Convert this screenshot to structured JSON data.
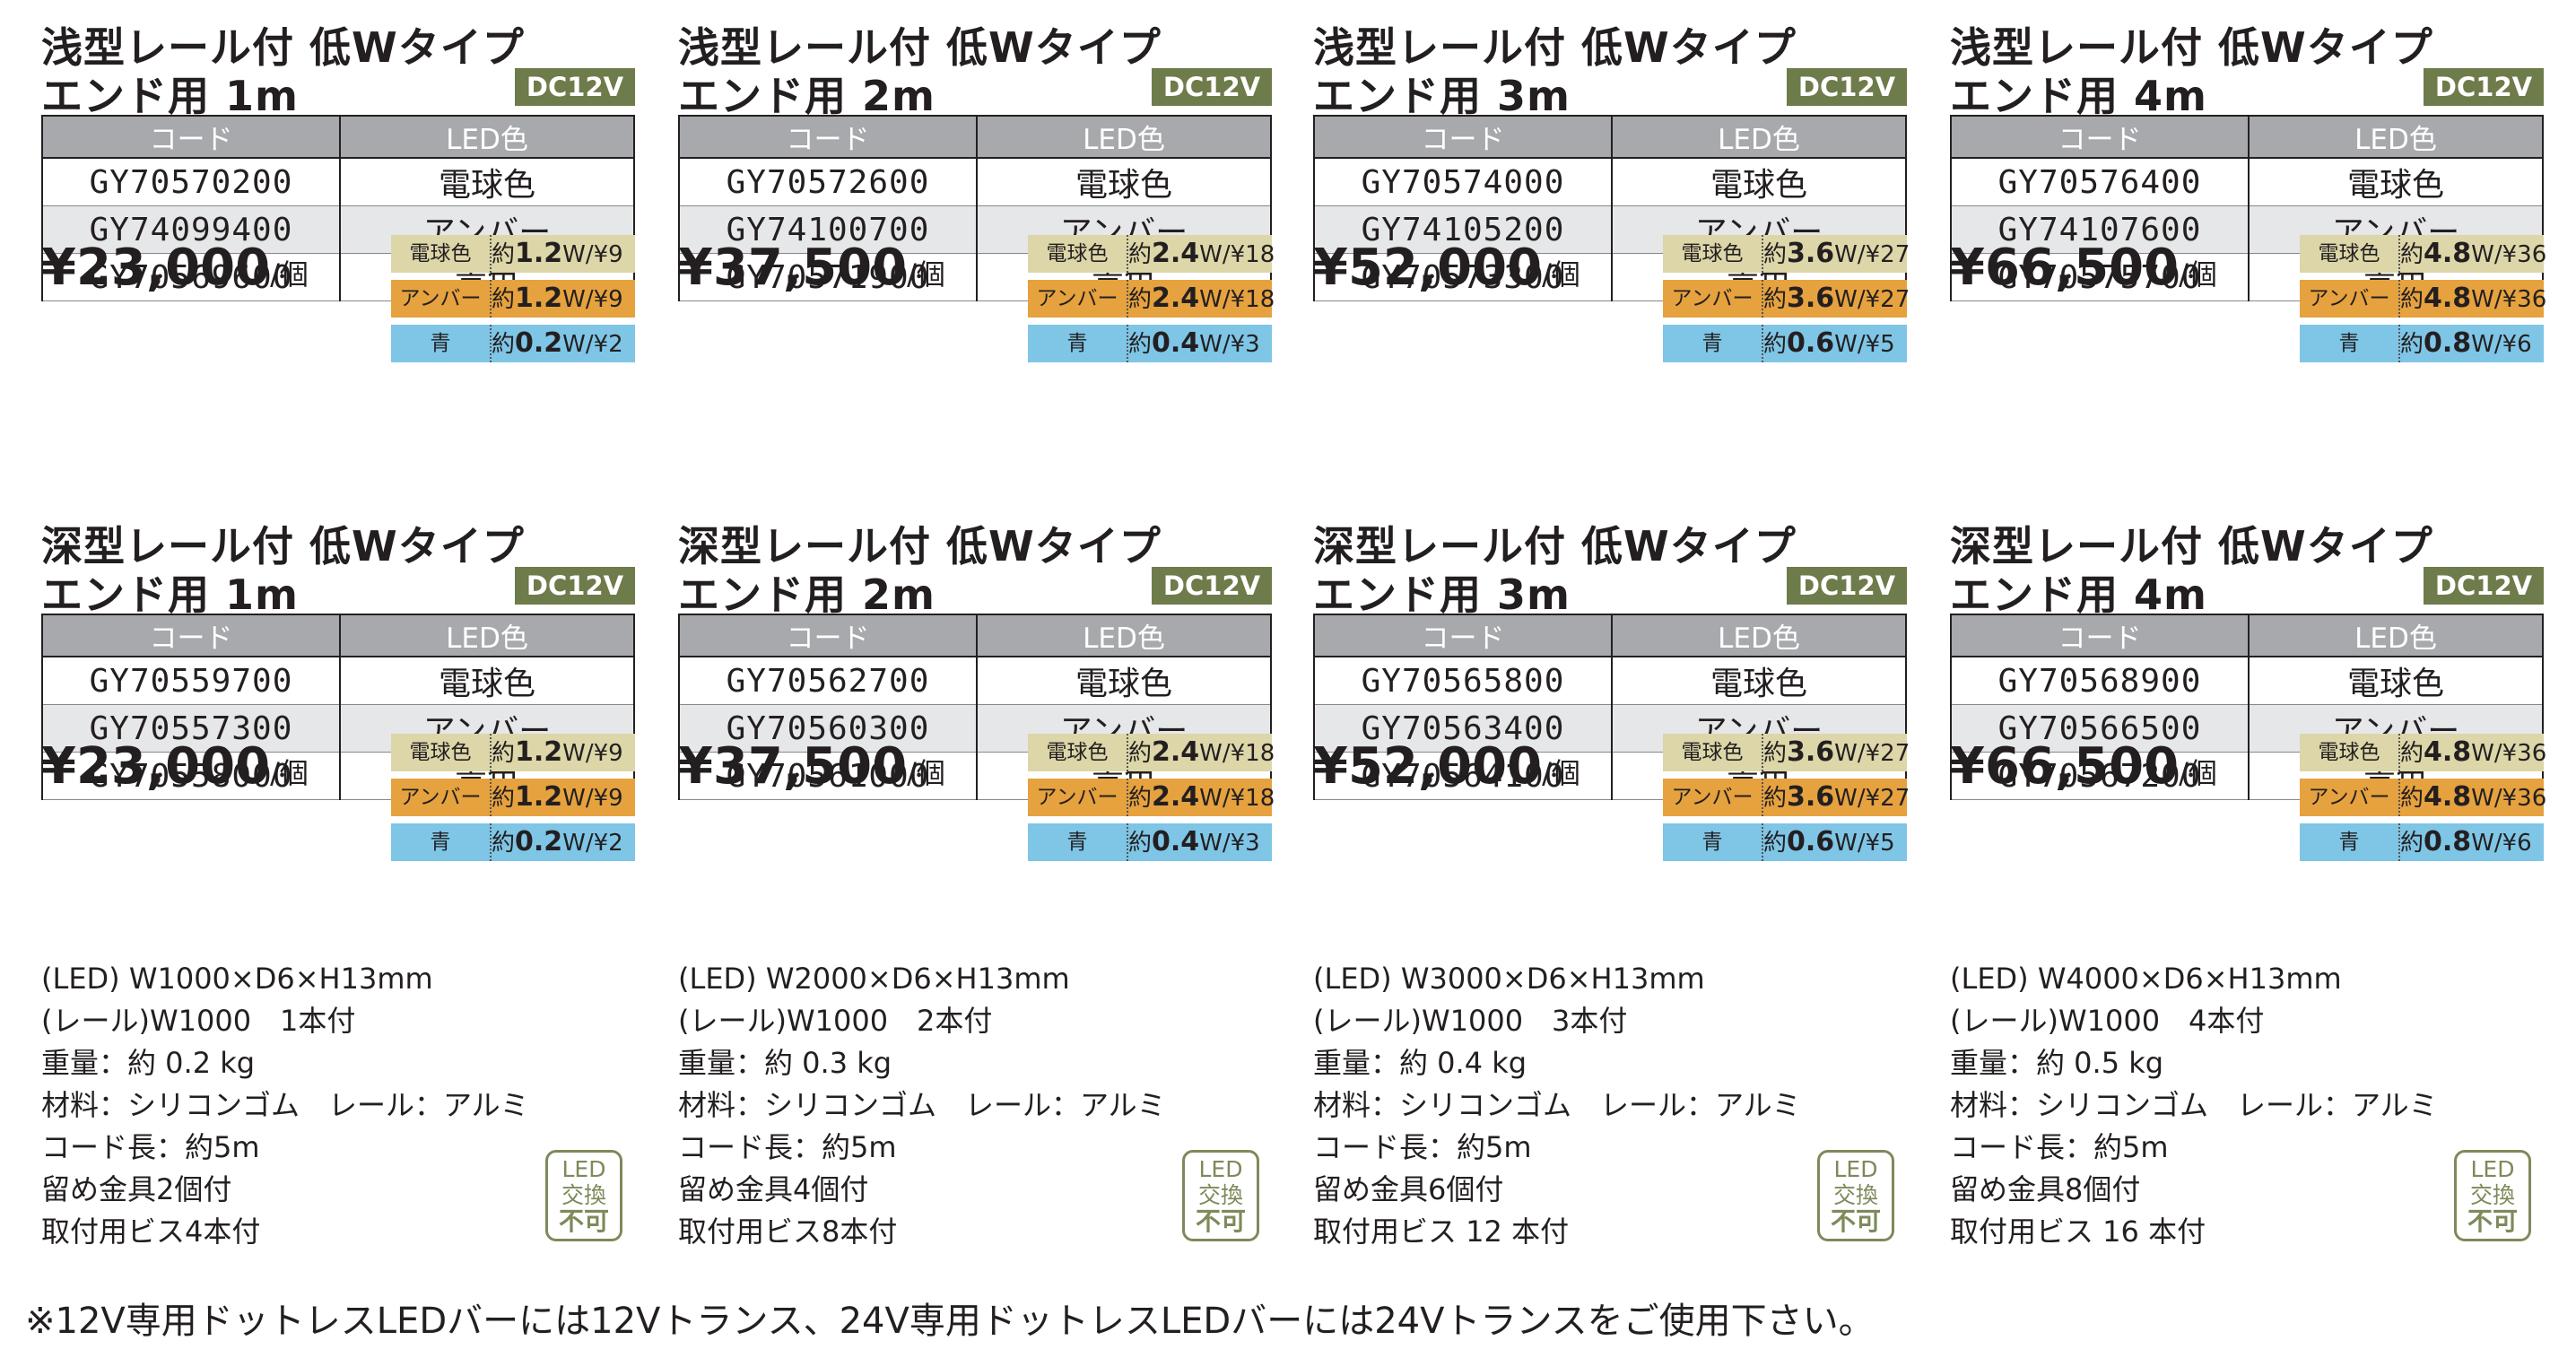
{
  "table_headers": {
    "code": "コード",
    "color": "LED色"
  },
  "badge": "DC12V",
  "spec_names": [
    "電球色",
    "アンバー",
    "青"
  ],
  "products": [
    {
      "line1": "浅型レール付 低Wタイプ",
      "line2": "エンド用 1m",
      "codes": [
        "GY70570200",
        "GY74099400",
        "GY70569600"
      ],
      "colors": [
        "電球色",
        "アンバー",
        "青色"
      ],
      "price": "¥23,000",
      "unit": "/個",
      "specs": [
        {
          "pre": "約",
          "w": "1.2",
          "post": "W/¥9"
        },
        {
          "pre": "約",
          "w": "1.2",
          "post": "W/¥9"
        },
        {
          "pre": "約",
          "w": "0.2",
          "post": "W/¥2"
        }
      ]
    },
    {
      "line1": "浅型レール付 低Wタイプ",
      "line2": "エンド用 2m",
      "codes": [
        "GY70572600",
        "GY74100700",
        "GY70571900"
      ],
      "colors": [
        "電球色",
        "アンバー",
        "青色"
      ],
      "price": "¥37,500",
      "unit": "/個",
      "specs": [
        {
          "pre": "約",
          "w": "2.4",
          "post": "W/¥18"
        },
        {
          "pre": "約",
          "w": "2.4",
          "post": "W/¥18"
        },
        {
          "pre": "約",
          "w": "0.4",
          "post": "W/¥3"
        }
      ]
    },
    {
      "line1": "浅型レール付 低Wタイプ",
      "line2": "エンド用 3m",
      "codes": [
        "GY70574000",
        "GY74105200",
        "GY70573300"
      ],
      "colors": [
        "電球色",
        "アンバー",
        "青色"
      ],
      "price": "¥52,000",
      "unit": "/個",
      "specs": [
        {
          "pre": "約",
          "w": "3.6",
          "post": "W/¥27"
        },
        {
          "pre": "約",
          "w": "3.6",
          "post": "W/¥27"
        },
        {
          "pre": "約",
          "w": "0.6",
          "post": "W/¥5"
        }
      ]
    },
    {
      "line1": "浅型レール付 低Wタイプ",
      "line2": "エンド用 4m",
      "codes": [
        "GY70576400",
        "GY74107600",
        "GY70575700"
      ],
      "colors": [
        "電球色",
        "アンバー",
        "青色"
      ],
      "price": "¥66,500",
      "unit": "/個",
      "specs": [
        {
          "pre": "約",
          "w": "4.8",
          "post": "W/¥36"
        },
        {
          "pre": "約",
          "w": "4.8",
          "post": "W/¥36"
        },
        {
          "pre": "約",
          "w": "0.8",
          "post": "W/¥6"
        }
      ]
    },
    {
      "line1": "深型レール付 低Wタイプ",
      "line2": "エンド用 1m",
      "codes": [
        "GY70559700",
        "GY70557300",
        "GY70558000"
      ],
      "colors": [
        "電球色",
        "アンバー",
        "青色"
      ],
      "price": "¥23,000",
      "unit": "/個",
      "specs": [
        {
          "pre": "約",
          "w": "1.2",
          "post": "W/¥9"
        },
        {
          "pre": "約",
          "w": "1.2",
          "post": "W/¥9"
        },
        {
          "pre": "約",
          "w": "0.2",
          "post": "W/¥2"
        }
      ]
    },
    {
      "line1": "深型レール付 低Wタイプ",
      "line2": "エンド用 2m",
      "codes": [
        "GY70562700",
        "GY70560300",
        "GY70561000"
      ],
      "colors": [
        "電球色",
        "アンバー",
        "青色"
      ],
      "price": "¥37,500",
      "unit": "/個",
      "specs": [
        {
          "pre": "約",
          "w": "2.4",
          "post": "W/¥18"
        },
        {
          "pre": "約",
          "w": "2.4",
          "post": "W/¥18"
        },
        {
          "pre": "約",
          "w": "0.4",
          "post": "W/¥3"
        }
      ]
    },
    {
      "line1": "深型レール付 低Wタイプ",
      "line2": "エンド用 3m",
      "codes": [
        "GY70565800",
        "GY70563400",
        "GY70564100"
      ],
      "colors": [
        "電球色",
        "アンバー",
        "青色"
      ],
      "price": "¥52,000",
      "unit": "/個",
      "specs": [
        {
          "pre": "約",
          "w": "3.6",
          "post": "W/¥27"
        },
        {
          "pre": "約",
          "w": "3.6",
          "post": "W/¥27"
        },
        {
          "pre": "約",
          "w": "0.6",
          "post": "W/¥5"
        }
      ]
    },
    {
      "line1": "深型レール付 低Wタイプ",
      "line2": "エンド用 4m",
      "codes": [
        "GY70568900",
        "GY70566500",
        "GY70567200"
      ],
      "colors": [
        "電球色",
        "アンバー",
        "青色"
      ],
      "price": "¥66,500",
      "unit": "/個",
      "specs": [
        {
          "pre": "約",
          "w": "4.8",
          "post": "W/¥36"
        },
        {
          "pre": "約",
          "w": "4.8",
          "post": "W/¥36"
        },
        {
          "pre": "約",
          "w": "0.8",
          "post": "W/¥6"
        }
      ]
    }
  ],
  "descriptions": [
    [
      "(LED) W1000×D6×H13mm",
      "(レール)W1000　1本付",
      "重量：約 0.2 kg",
      "材料：シリコンゴム　レール：アルミ",
      "コード長：約5m",
      "留め金具2個付",
      "取付用ビス4本付"
    ],
    [
      "(LED) W2000×D6×H13mm",
      "(レール)W1000　2本付",
      "重量：約 0.3 kg",
      "材料：シリコンゴム　レール：アルミ",
      "コード長：約5m",
      "留め金具4個付",
      "取付用ビス8本付"
    ],
    [
      "(LED) W3000×D6×H13mm",
      "(レール)W1000　3本付",
      "重量：約 0.4 kg",
      "材料：シリコンゴム　レール：アルミ",
      "コード長：約5m",
      "留め金具6個付",
      "取付用ビス 12 本付"
    ],
    [
      "(LED) W4000×D6×H13mm",
      "(レール)W1000　4本付",
      "重量：約 0.5 kg",
      "材料：シリコンゴム　レール：アルミ",
      "コード長：約5m",
      "留め金具8個付",
      "取付用ビス 16 本付"
    ]
  ],
  "led_note": {
    "line1": "LED",
    "line2": "交換",
    "line3": "不可"
  },
  "footnote": "※12V専用ドットレスLEDバーには12Vトランス、24V専用ドットレスLEDバーには24Vトランスをご使用下さい。"
}
